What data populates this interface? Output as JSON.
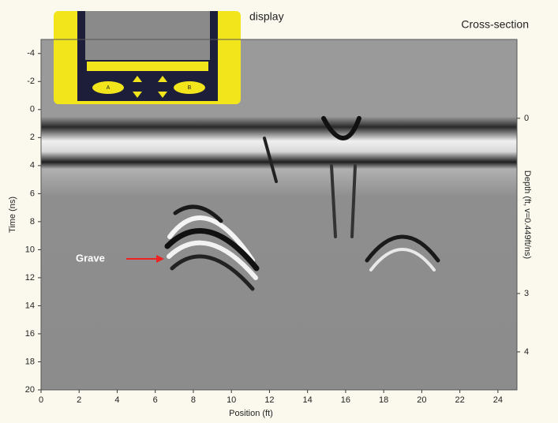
{
  "header": {
    "device_label": "display",
    "view_label": "Cross-section"
  },
  "device": {
    "buttons": [
      "A",
      "B"
    ]
  },
  "x_axis": {
    "label": "Position (ft)",
    "range": [
      0,
      25
    ],
    "ticks": [
      0,
      2,
      4,
      6,
      8,
      10,
      12,
      14,
      16,
      18,
      20,
      22,
      24
    ]
  },
  "y_axis": {
    "label": "Time (ns)",
    "range": [
      -5,
      20
    ],
    "ticks": [
      -4,
      -2,
      0,
      2,
      4,
      6,
      8,
      10,
      12,
      14,
      16,
      18,
      20
    ]
  },
  "y2_axis": {
    "label": "Depth (ft, v=0.449ft/ns)",
    "range": [
      -1.35,
      4.65
    ],
    "ticks": [
      0,
      3,
      4
    ]
  },
  "annotation": {
    "label": "Grave"
  }
}
